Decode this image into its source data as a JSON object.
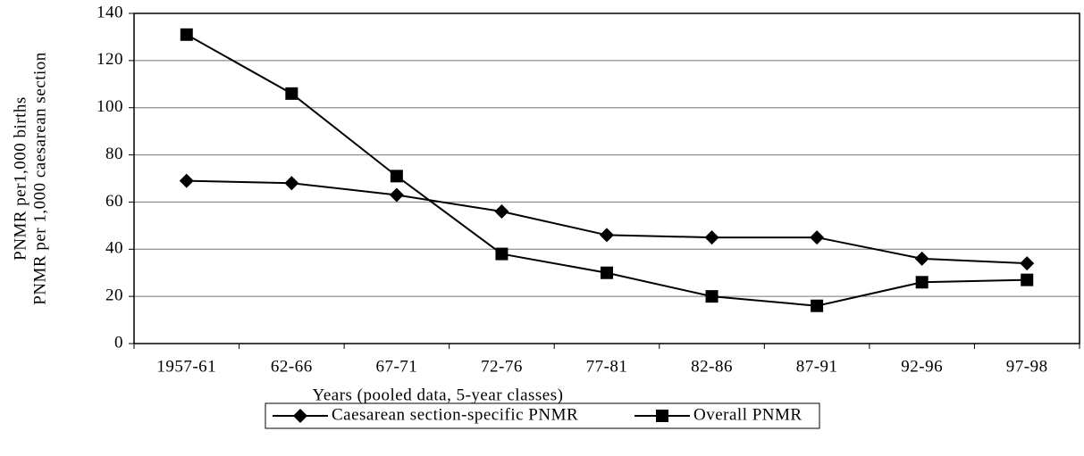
{
  "chart_data": {
    "type": "line",
    "categories": [
      "1957-61",
      "62-66",
      "67-71",
      "72-76",
      "77-81",
      "82-86",
      "87-91",
      "92-96",
      "97-98"
    ],
    "series": [
      {
        "name": "Caesarean section-specific PNMR",
        "color": "#000000",
        "marker": "diamond",
        "values": [
          69,
          68,
          63,
          56,
          46,
          45,
          45,
          36,
          34
        ]
      },
      {
        "name": "Overall PNMR",
        "color": "#000000",
        "marker": "square",
        "values": [
          131,
          106,
          71,
          38,
          30,
          20,
          16,
          26,
          27
        ]
      }
    ],
    "xlabel": "Years (pooled data, 5-year classes)",
    "ylabel": [
      "PNMR per1,000 births",
      "PNMR per 1,000 caesarean section"
    ],
    "ylim": [
      0,
      140
    ],
    "yticks": [
      0,
      20,
      40,
      60,
      80,
      100,
      120,
      140
    ],
    "grid": true,
    "legend": "bottom"
  }
}
